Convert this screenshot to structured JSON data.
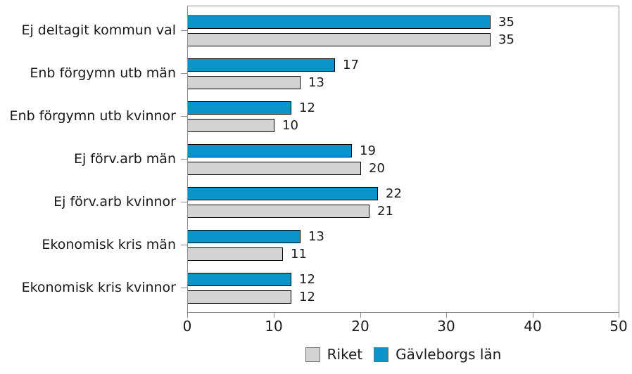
{
  "chart_data": {
    "type": "bar",
    "orientation": "horizontal",
    "title": "",
    "xlabel": "",
    "ylabel": "",
    "categories": [
      "Ej deltagit kommun val",
      "Enb förgymn utb män",
      "Enb förgymn utb kvinnor",
      "Ej förv.arb män",
      "Ej förv.arb kvinnor",
      "Ekonomisk kris män",
      "Ekonomisk kris kvinnor"
    ],
    "series": [
      {
        "name": "Gävleborgs län",
        "color": "#0a94cb",
        "values": [
          35,
          17,
          12,
          19,
          22,
          13,
          12
        ]
      },
      {
        "name": "Riket",
        "color": "#d3d3d3",
        "values": [
          35,
          13,
          10,
          20,
          21,
          11,
          12
        ]
      }
    ],
    "xlim": [
      0,
      50
    ],
    "x_ticks": [
      0,
      10,
      20,
      30,
      40,
      50
    ],
    "grid": false,
    "bar_value_labels": true,
    "legend_position": "bottom",
    "legend": [
      {
        "label": "Riket",
        "color": "#d3d3d3"
      },
      {
        "label": "Gävleborgs län",
        "color": "#0a94cb"
      }
    ]
  },
  "colors": {
    "frame": "#8f8f8f",
    "bar_border": "#000000",
    "text": "#1a1a1a",
    "background": "#ffffff"
  }
}
